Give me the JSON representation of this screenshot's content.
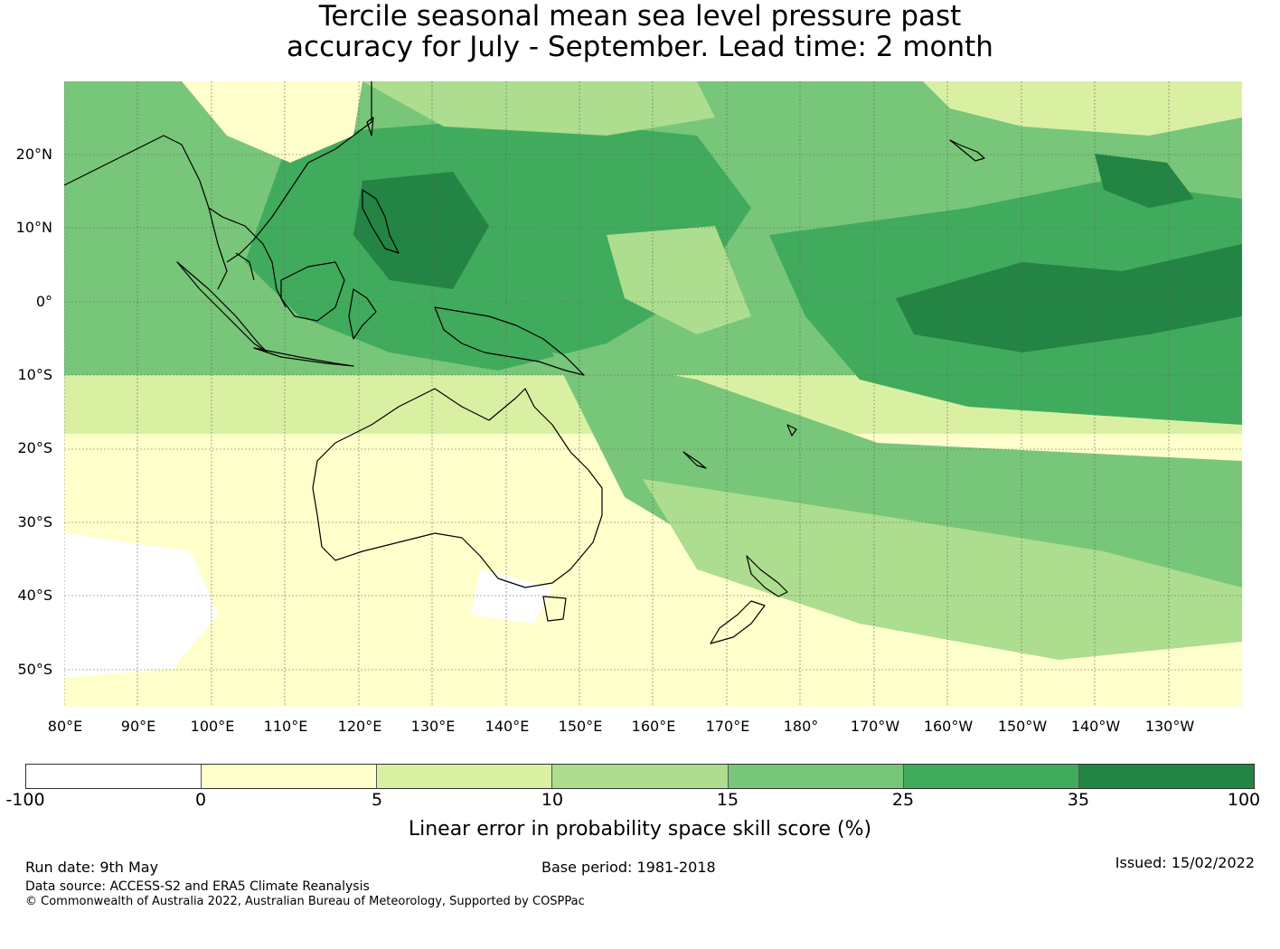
{
  "title": {
    "line1": "Tercile seasonal mean sea level pressure past",
    "line2": "accuracy for July - September. Lead time: 2 month"
  },
  "map": {
    "lat_labels": [
      "20°N",
      "10°N",
      "0°",
      "10°S",
      "20°S",
      "30°S",
      "40°S",
      "50°S"
    ],
    "lon_labels": [
      "80°E",
      "90°E",
      "100°E",
      "110°E",
      "120°E",
      "130°E",
      "140°E",
      "150°E",
      "160°E",
      "170°E",
      "180°",
      "170°W",
      "160°W",
      "150°W",
      "140°W",
      "130°W"
    ],
    "lat_range": [
      -55,
      30
    ],
    "lon_range": [
      80,
      240
    ]
  },
  "colorbar": {
    "ticks": [
      "-100",
      "0",
      "5",
      "10",
      "15",
      "25",
      "35",
      "100"
    ],
    "colors": [
      "#ffffff",
      "#ffffcc",
      "#d9f0a3",
      "#addd8e",
      "#78c679",
      "#41ab5d",
      "#238443"
    ],
    "label": "Linear error in probability space skill score (%)"
  },
  "footer": {
    "run_date": "Run date: 9th May",
    "base_period": "Base period: 1981-2018",
    "issued": "Issued: 15/02/2022",
    "data_source": "Data source: ACCESS-S2 and ERA5 Climate Reanalysis",
    "copyright": "© Commonwealth of Australia 2022, Australian Bureau of Meteorology, Supported by COSPPac"
  }
}
